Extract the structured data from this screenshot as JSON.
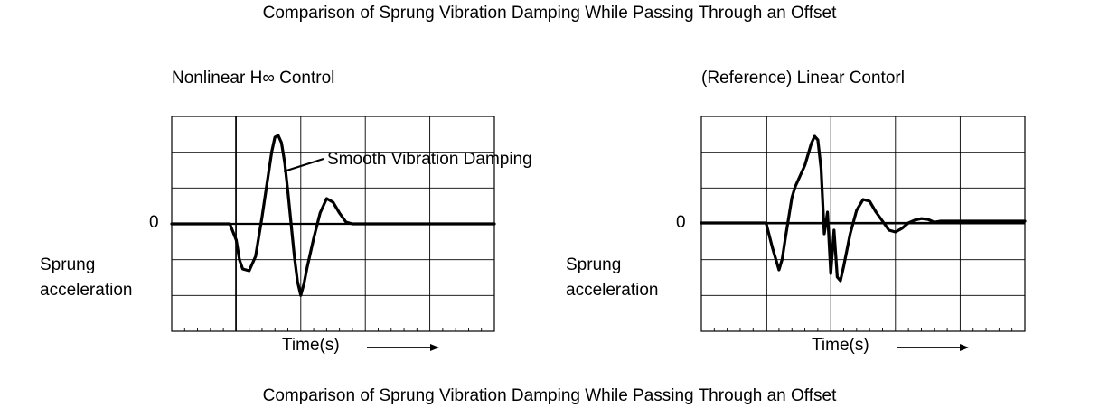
{
  "top_title": "Comparison of Sprung Vibration Damping While Passing Through an Offset",
  "bottom_title": "Comparison of Sprung Vibration Damping While Passing Through an Offset",
  "chart_data": [
    {
      "type": "line",
      "title": "Nonlinear H∞ Control",
      "xlabel": "Time(s)",
      "ylabel_line1": "Sprung",
      "ylabel_line2": "acceleration",
      "zero_label": "0",
      "annotation": "Smooth Vibration Damping",
      "grid": true,
      "line_color": "#000000",
      "series": [
        {
          "x": [
            0,
            0.9,
            1.0,
            1.05,
            1.1,
            1.2,
            1.3,
            1.4,
            1.5,
            1.55,
            1.6,
            1.65,
            1.7,
            1.75,
            1.8,
            1.85,
            1.9,
            1.95,
            2.0,
            2.05,
            2.1,
            2.2,
            2.3,
            2.4,
            2.5,
            2.6,
            2.7,
            2.8,
            2.9,
            3.0,
            3.1,
            3.5,
            4.0,
            4.5,
            5.0
          ],
          "y": [
            0,
            0,
            -0.45,
            -1.0,
            -1.25,
            -1.3,
            -0.9,
            0.2,
            1.4,
            2.0,
            2.4,
            2.45,
            2.25,
            1.7,
            0.9,
            0,
            -0.9,
            -1.6,
            -1.98,
            -1.65,
            -1.2,
            -0.4,
            0.3,
            0.7,
            0.6,
            0.3,
            0.05,
            0,
            0,
            0,
            0,
            0,
            0,
            0,
            0
          ]
        }
      ]
    },
    {
      "type": "line",
      "title": "(Reference) Linear Contorl",
      "xlabel": "Time(s)",
      "ylabel_line1": "Sprung",
      "ylabel_line2": "acceleration",
      "zero_label": "0",
      "grid": true,
      "line_color": "#000000",
      "series": [
        {
          "x": [
            0,
            1.0,
            1.1,
            1.2,
            1.25,
            1.3,
            1.4,
            1.45,
            1.5,
            1.6,
            1.7,
            1.75,
            1.8,
            1.85,
            1.9,
            1.95,
            2.0,
            2.05,
            2.1,
            2.15,
            2.2,
            2.3,
            2.4,
            2.5,
            2.6,
            2.7,
            2.8,
            2.9,
            3.0,
            3.1,
            3.2,
            3.3,
            3.4,
            3.5,
            3.6,
            3.7,
            3.8,
            4.0,
            4.5,
            5.0
          ],
          "y": [
            0,
            0,
            -0.7,
            -1.3,
            -1.0,
            -0.4,
            0.7,
            1.0,
            1.2,
            1.6,
            2.2,
            2.4,
            2.3,
            1.5,
            -0.3,
            0.3,
            -1.4,
            -0.2,
            -1.5,
            -1.6,
            -1.2,
            -0.3,
            0.35,
            0.65,
            0.6,
            0.3,
            0.05,
            -0.2,
            -0.25,
            -0.15,
            0,
            0.08,
            0.12,
            0.1,
            0.02,
            0.05,
            0.05,
            0.05,
            0.05,
            0.05
          ]
        }
      ]
    }
  ]
}
